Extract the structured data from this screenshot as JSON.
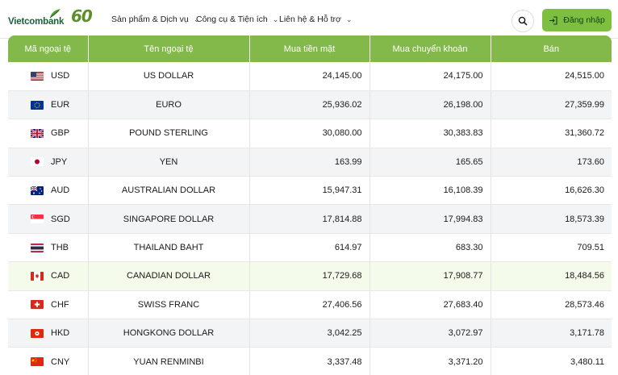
{
  "brand": {
    "name": "Vietcombank",
    "anniversary": "60"
  },
  "nav": [
    {
      "label": "Sản phẩm & Dịch vụ"
    },
    {
      "label": "Công cụ & Tiện ích"
    },
    {
      "label": "Liên hệ & Hỗ trợ"
    }
  ],
  "header": {
    "login_label": "Đăng nhập"
  },
  "colors": {
    "accent": "#83b94a",
    "button": "#7fbf3f",
    "brand": "#1e5e3a"
  },
  "table": {
    "headers": [
      "Mã ngoại tệ",
      "Tên ngoại tệ",
      "Mua tiền mặt",
      "Mua chuyển khoản",
      "Bán"
    ],
    "rows": [
      {
        "code": "USD",
        "flag": "us-flag-icon",
        "name": "US DOLLAR",
        "cash": "24,145.00",
        "transfer": "24,175.00",
        "sell": "24,515.00"
      },
      {
        "code": "EUR",
        "flag": "eu-flag-icon",
        "name": "EURO",
        "cash": "25,936.02",
        "transfer": "26,198.00",
        "sell": "27,359.99"
      },
      {
        "code": "GBP",
        "flag": "gb-flag-icon",
        "name": "POUND STERLING",
        "cash": "30,080.00",
        "transfer": "30,383.83",
        "sell": "31,360.72"
      },
      {
        "code": "JPY",
        "flag": "jp-flag-icon",
        "name": "YEN",
        "cash": "163.99",
        "transfer": "165.65",
        "sell": "173.60"
      },
      {
        "code": "AUD",
        "flag": "au-flag-icon",
        "name": "AUSTRALIAN DOLLAR",
        "cash": "15,947.31",
        "transfer": "16,108.39",
        "sell": "16,626.30"
      },
      {
        "code": "SGD",
        "flag": "sg-flag-icon",
        "name": "SINGAPORE DOLLAR",
        "cash": "17,814.88",
        "transfer": "17,994.83",
        "sell": "18,573.39"
      },
      {
        "code": "THB",
        "flag": "th-flag-icon",
        "name": "THAILAND BAHT",
        "cash": "614.97",
        "transfer": "683.30",
        "sell": "709.51"
      },
      {
        "code": "CAD",
        "flag": "ca-flag-icon",
        "name": "CANADIAN DOLLAR",
        "cash": "17,729.68",
        "transfer": "17,908.77",
        "sell": "18,484.56"
      },
      {
        "code": "CHF",
        "flag": "ch-flag-icon",
        "name": "SWISS FRANC",
        "cash": "27,406.56",
        "transfer": "27,683.40",
        "sell": "28,573.46"
      },
      {
        "code": "HKD",
        "flag": "hk-flag-icon",
        "name": "HONGKONG DOLLAR",
        "cash": "3,042.25",
        "transfer": "3,072.97",
        "sell": "3,171.78"
      },
      {
        "code": "CNY",
        "flag": "cn-flag-icon",
        "name": "YUAN RENMINBI",
        "cash": "3,337.48",
        "transfer": "3,371.20",
        "sell": "3,480.11"
      }
    ]
  }
}
